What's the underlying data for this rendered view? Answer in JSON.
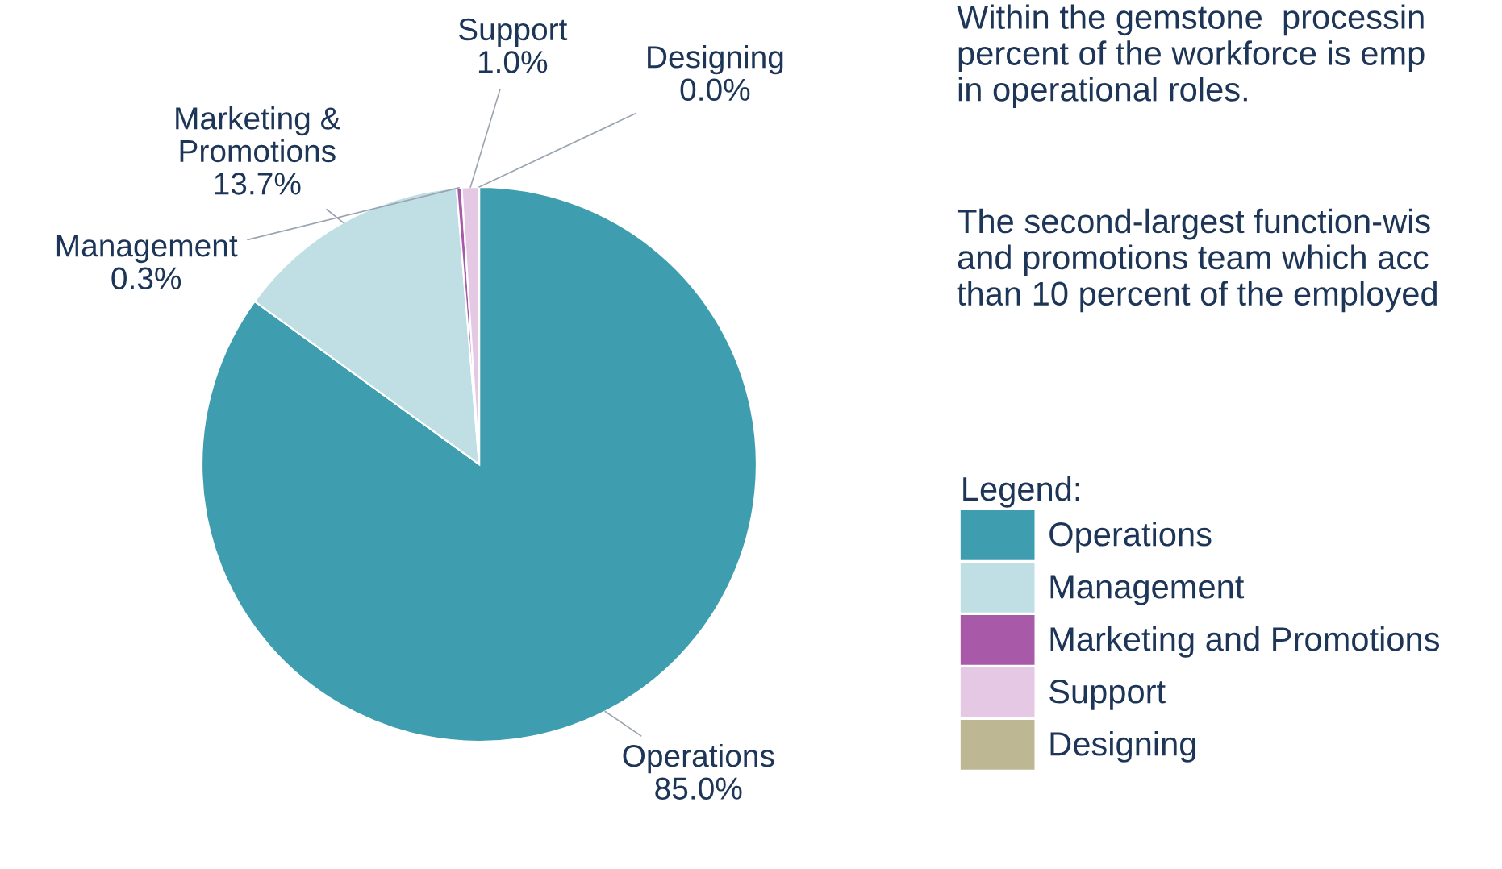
{
  "chart_data": {
    "type": "pie",
    "categories": [
      "Operations",
      "Management",
      "Marketing and Promotions",
      "Support",
      "Designing"
    ],
    "values": [
      85.0,
      13.7,
      0.3,
      1.0,
      0.0
    ],
    "colors": [
      "#3f9db0",
      "#bfdfe4",
      "#a85aa8",
      "#e4c8e4",
      "#bdb793"
    ],
    "value_labels": [
      "Operations\n85.0%",
      "Marketing &\nPromotions\n13.7%",
      "Management\n0.3%",
      "Support\n1.0%",
      "Designing\n0.0%"
    ],
    "legend_title": "Legend:",
    "legend": "right",
    "annotations": [
      "Within the gemstone  processin\npercent of the workforce is emp\nin operational roles.",
      "The second-largest function-wis\nand promotions team which acc\nthan 10 percent of the employed"
    ]
  }
}
